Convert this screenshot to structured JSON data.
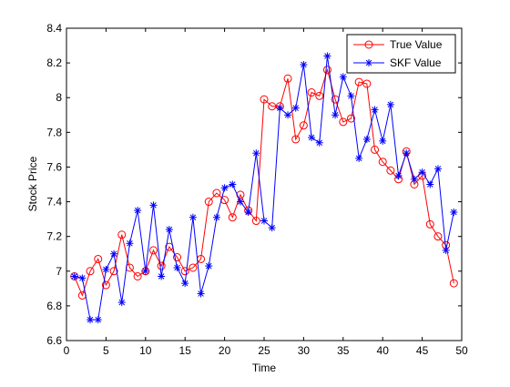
{
  "chart_data": {
    "type": "line",
    "title": "",
    "xlabel": "Time",
    "ylabel": "Stock Price",
    "xlim": [
      0,
      50
    ],
    "ylim": [
      6.6,
      8.4
    ],
    "xticks": [
      0,
      5,
      10,
      15,
      20,
      25,
      30,
      35,
      40,
      45,
      50
    ],
    "yticks": [
      6.6,
      6.8,
      7,
      7.2,
      7.4,
      7.6,
      7.8,
      8,
      8.2,
      8.4
    ],
    "xtick_labels": [
      "0",
      "5",
      "10",
      "15",
      "20",
      "25",
      "30",
      "35",
      "40",
      "45",
      "50"
    ],
    "ytick_labels": [
      "6.6",
      "6.8",
      "7",
      "7.2",
      "7.4",
      "7.6",
      "7.8",
      "8",
      "8.2",
      "8.4"
    ],
    "grid": false,
    "legend_position": "top-right",
    "x": [
      1,
      2,
      3,
      4,
      5,
      6,
      7,
      8,
      9,
      10,
      11,
      12,
      13,
      14,
      15,
      16,
      17,
      18,
      19,
      20,
      21,
      22,
      23,
      24,
      25,
      26,
      27,
      28,
      29,
      30,
      31,
      32,
      33,
      34,
      35,
      36,
      37,
      38,
      39,
      40,
      41,
      42,
      43,
      44,
      45,
      46,
      47,
      48,
      49
    ],
    "series": [
      {
        "name": "True Value",
        "color": "#ff0000",
        "marker": "circle",
        "values": [
          6.97,
          6.86,
          7.0,
          7.07,
          6.92,
          7.0,
          7.21,
          7.02,
          6.97,
          7.0,
          7.12,
          7.03,
          7.14,
          7.08,
          7.0,
          7.02,
          7.07,
          7.4,
          7.45,
          7.41,
          7.31,
          7.44,
          7.35,
          7.29,
          7.99,
          7.95,
          7.95,
          8.11,
          7.76,
          7.84,
          8.03,
          8.01,
          8.16,
          7.99,
          7.86,
          7.88,
          8.09,
          8.08,
          7.7,
          7.63,
          7.58,
          7.53,
          7.69,
          7.5,
          7.55,
          7.27,
          7.2,
          7.15,
          6.93
        ]
      },
      {
        "name": "SKF Value",
        "color": "#0000ff",
        "marker": "asterisk",
        "values": [
          6.97,
          6.96,
          6.72,
          6.72,
          7.01,
          7.1,
          6.82,
          7.16,
          7.35,
          7.0,
          7.38,
          6.97,
          7.24,
          7.02,
          6.93,
          7.31,
          6.87,
          7.03,
          7.31,
          7.48,
          7.5,
          7.4,
          7.34,
          7.68,
          7.29,
          7.25,
          7.94,
          7.9,
          7.94,
          8.19,
          7.77,
          7.74,
          8.24,
          7.9,
          8.12,
          8.01,
          7.65,
          7.76,
          7.93,
          7.75,
          7.96,
          7.55,
          7.68,
          7.53,
          7.57,
          7.5,
          7.59,
          7.12,
          7.34
        ]
      }
    ]
  }
}
